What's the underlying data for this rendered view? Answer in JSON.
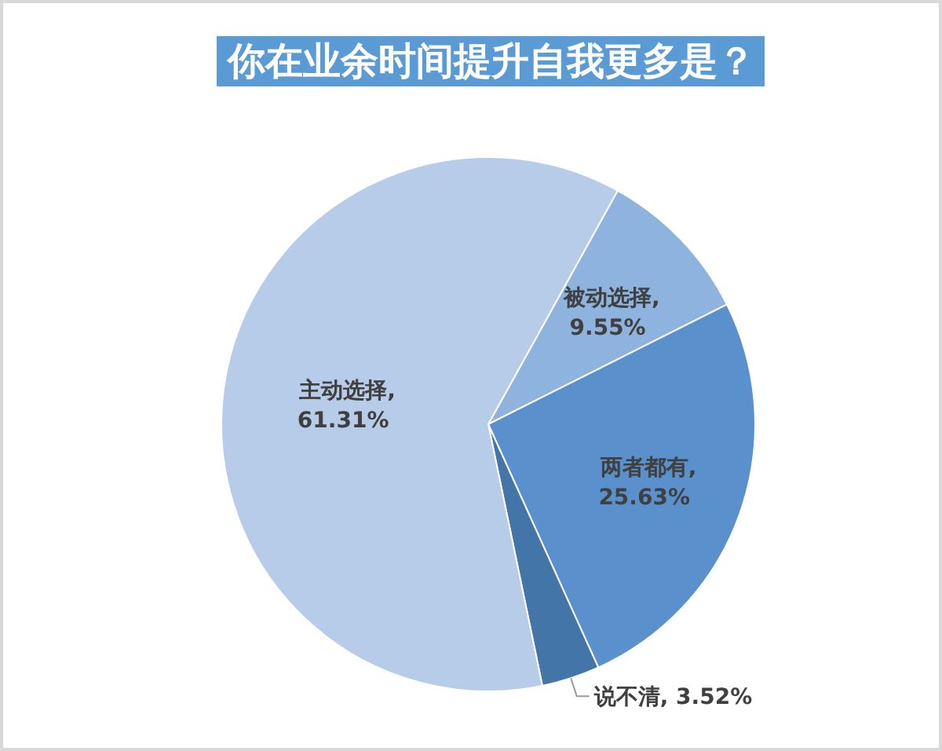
{
  "chart_data": {
    "type": "pie",
    "title": "你在业余时间提升自我更多是？",
    "categories": [
      "被动选择",
      "两者都有",
      "说不清",
      "主动选择"
    ],
    "values": [
      9.55,
      25.63,
      3.52,
      61.31
    ],
    "value_labels": [
      ", 9.55%",
      ", 25.63%",
      ", 3.52%",
      ", 61.31%"
    ],
    "colors": [
      "#8eb3de",
      "#5a90cb",
      "#4475a8",
      "#b7cce8"
    ],
    "legend": false
  }
}
